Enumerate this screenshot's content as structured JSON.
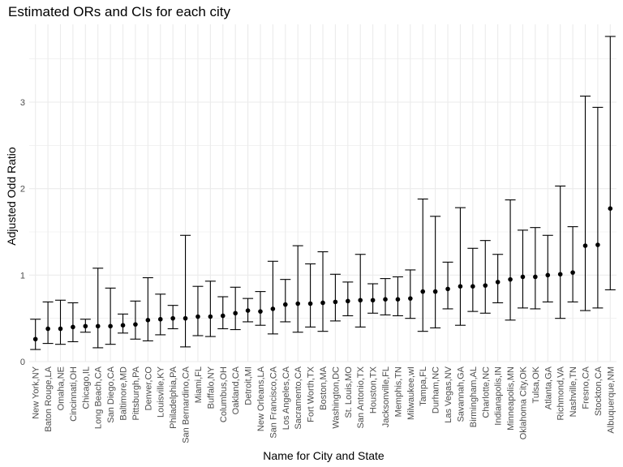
{
  "chart_data": {
    "type": "errorbar",
    "title": "Estimated ORs and CIs for each city",
    "xlabel": "Name for City and State",
    "ylabel": "Adjusted Odd Ratio",
    "ylim": [
      0,
      3.9
    ],
    "yticks": [
      0,
      1,
      2,
      3
    ],
    "grid": true,
    "legend": "none",
    "colors": {
      "mark": "#000000",
      "grid": "#ebebeb",
      "tick_text": "#4d4d4d"
    },
    "categories": [
      "New York,NY",
      "Baton Rouge,LA",
      "Omaha,NE",
      "Cincinnati,OH",
      "Chicago,IL",
      "Long Beach,CA",
      "San Diego,CA",
      "Baltimore,MD",
      "Pittsburgh,PA",
      "Denver,CO",
      "Louisville,KY",
      "Philadelphia,PA",
      "San Bernardino,CA",
      "Miami,FL",
      "Buffalo,NY",
      "Columbus,OH",
      "Oakland,CA",
      "Detroit,MI",
      "New Orleans,LA",
      "San Francisco,CA",
      "Los Angeles,CA",
      "Sacramento,CA",
      "Fort Worth,TX",
      "Boston,MA",
      "Washington,DC",
      "St. Louis,MO",
      "San Antonio,TX",
      "Houston,TX",
      "Jacksonville,FL",
      "Memphis,TN",
      "Milwaukee,wI",
      "Tampa,FL",
      "Durham,NC",
      "Las Vegas,NV",
      "Savannah,GA",
      "Birmingham,AL",
      "Charlotte,NC",
      "Indianapolis,IN",
      "Minneapolis,MN",
      "Oklahoma City,OK",
      "Tulsa,OK",
      "Atlanta,GA",
      "Richmond,VA",
      "Nashville,TN",
      "Fresno,CA",
      "Stockton,CA",
      "Albuquerque,NM"
    ],
    "estimate": [
      0.26,
      0.38,
      0.38,
      0.4,
      0.41,
      0.41,
      0.41,
      0.42,
      0.43,
      0.48,
      0.49,
      0.5,
      0.5,
      0.52,
      0.52,
      0.53,
      0.56,
      0.59,
      0.58,
      0.61,
      0.66,
      0.67,
      0.67,
      0.68,
      0.69,
      0.7,
      0.71,
      0.71,
      0.72,
      0.72,
      0.73,
      0.81,
      0.81,
      0.84,
      0.87,
      0.87,
      0.88,
      0.92,
      0.95,
      0.98,
      0.98,
      1.0,
      1.01,
      1.03,
      1.34,
      1.35,
      1.77
    ],
    "lower": [
      0.14,
      0.21,
      0.2,
      0.23,
      0.34,
      0.16,
      0.2,
      0.33,
      0.26,
      0.24,
      0.31,
      0.38,
      0.17,
      0.3,
      0.29,
      0.38,
      0.37,
      0.46,
      0.42,
      0.32,
      0.46,
      0.34,
      0.4,
      0.35,
      0.47,
      0.53,
      0.4,
      0.56,
      0.54,
      0.53,
      0.5,
      0.35,
      0.39,
      0.61,
      0.42,
      0.58,
      0.56,
      0.68,
      0.48,
      0.62,
      0.61,
      0.69,
      0.5,
      0.69,
      0.59,
      0.62,
      0.83
    ],
    "upper": [
      0.49,
      0.69,
      0.71,
      0.68,
      0.49,
      1.08,
      0.85,
      0.55,
      0.7,
      0.97,
      0.78,
      0.65,
      1.46,
      0.87,
      0.93,
      0.75,
      0.86,
      0.73,
      0.81,
      1.16,
      0.95,
      1.34,
      1.13,
      1.27,
      1.01,
      0.92,
      1.24,
      0.9,
      0.96,
      0.98,
      1.06,
      1.88,
      1.68,
      1.15,
      1.78,
      1.31,
      1.4,
      1.24,
      1.87,
      1.52,
      1.55,
      1.46,
      2.03,
      1.56,
      3.07,
      2.94,
      3.76
    ]
  }
}
